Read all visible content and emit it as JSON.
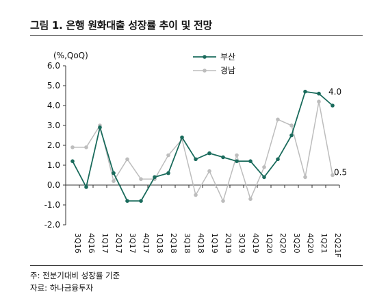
{
  "figure": {
    "title": "그림 1. 은행 원화대출 성장률 추이 및 전망",
    "note": "주: 전분기대비 성장률 기준",
    "source": "자료: 하나금융투자"
  },
  "colors": {
    "busan": "#1a6b5c",
    "gyeongnam": "#bdbdbd",
    "axis": "#333333"
  },
  "chart_data": {
    "type": "line",
    "unit_label": "(%,QoQ)",
    "ylim": [
      -2.0,
      6.0
    ],
    "yticks": [
      "6.0",
      "5.0",
      "4.0",
      "3.0",
      "2.0",
      "1.0",
      "0.0",
      "-1.0",
      "-2.0"
    ],
    "categories": [
      "3Q16",
      "4Q16",
      "1Q17",
      "2Q17",
      "3Q17",
      "4Q17",
      "1Q18",
      "2Q18",
      "3Q18",
      "4Q18",
      "1Q19",
      "2Q19",
      "3Q19",
      "4Q19",
      "1Q20",
      "2Q20",
      "3Q20",
      "4Q20",
      "1Q21",
      "2Q21F"
    ],
    "legend_position": "top-center",
    "grid": false,
    "series": [
      {
        "name": "부산",
        "values": [
          1.2,
          -0.1,
          2.9,
          0.6,
          -0.8,
          -0.8,
          0.4,
          0.6,
          2.4,
          1.3,
          1.6,
          1.4,
          1.2,
          1.2,
          0.4,
          1.3,
          2.5,
          4.7,
          4.6,
          4.0
        ],
        "end_label": "4.0"
      },
      {
        "name": "경남",
        "values": [
          1.9,
          1.9,
          3.0,
          0.2,
          1.3,
          0.3,
          0.3,
          1.5,
          2.3,
          -0.5,
          0.7,
          -0.8,
          1.5,
          -0.7,
          0.9,
          3.3,
          3.0,
          0.4,
          4.2,
          0.5
        ],
        "end_label": "0.5"
      }
    ]
  }
}
